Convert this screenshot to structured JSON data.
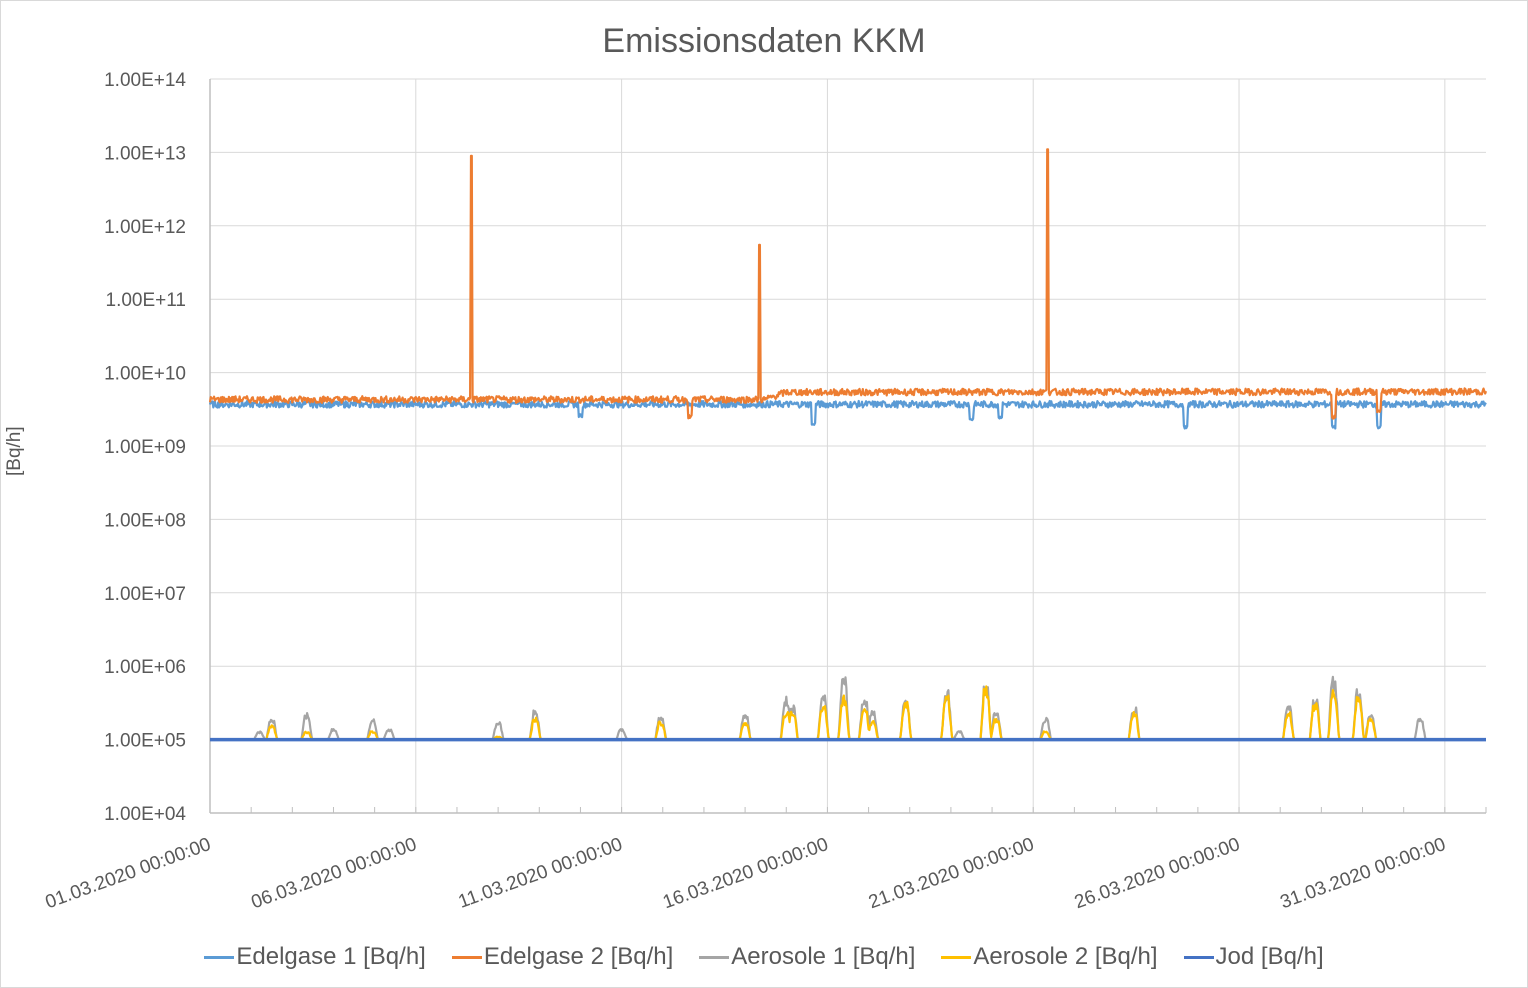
{
  "chart_data": {
    "type": "line",
    "title": "Emissionsdaten KKM",
    "xlabel": "",
    "ylabel": "[Bq/h]",
    "yscale": "log",
    "ylim": [
      10000,
      100000000000000
    ],
    "y_tick_labels": [
      "1.00E+04",
      "1.00E+05",
      "1.00E+06",
      "1.00E+07",
      "1.00E+08",
      "1.00E+09",
      "1.00E+10",
      "1.00E+11",
      "1.00E+12",
      "1.00E+13",
      "1.00E+14"
    ],
    "x_unit": "days since 01.03.2020 00:00:00",
    "xlim": [
      0,
      31
    ],
    "x_tick_labels": [
      "01.03.2020 00:00:00",
      "06.03.2020 00:00:00",
      "11.03.2020 00:00:00",
      "16.03.2020 00:00:00",
      "21.03.2020 00:00:00",
      "26.03.2020 00:00:00",
      "31.03.2020 00:00:00"
    ],
    "x_tick_values": [
      0,
      5,
      10,
      15,
      20,
      25,
      30
    ],
    "grid": true,
    "legend_position": "bottom",
    "series": [
      {
        "name": "Edelgase 1 [Bq/h]",
        "color": "#5b9bd5",
        "baseline": 3700000000,
        "events": [
          [
            14.65,
            2000000000
          ],
          [
            18.5,
            2300000000
          ],
          [
            19.2,
            2500000000
          ],
          [
            23.7,
            1800000000
          ],
          [
            27.3,
            1800000000
          ],
          [
            28.4,
            1800000000
          ],
          [
            9.0,
            2600000000
          ]
        ]
      },
      {
        "name": "Edelgase 2 [Bq/h]",
        "color": "#ed7d31",
        "levels": [
          [
            0,
            4300000000
          ],
          [
            13.5,
            4300000000
          ],
          [
            14.0,
            5400000000
          ],
          [
            31,
            5500000000
          ]
        ],
        "events": [
          [
            6.35,
            9000000000000
          ],
          [
            13.35,
            550000000000
          ],
          [
            20.35,
            11000000000000
          ],
          [
            11.65,
            2500000000
          ],
          [
            27.3,
            2500000000
          ],
          [
            28.4,
            3000000000
          ]
        ]
      },
      {
        "name": "Aerosole 1 [Bq/h]",
        "color": "#a5a5a5",
        "baseline": 100000,
        "events": [
          [
            1.2,
            130000
          ],
          [
            1.5,
            200000
          ],
          [
            2.35,
            230000
          ],
          [
            3.0,
            140000
          ],
          [
            3.95,
            190000
          ],
          [
            4.35,
            140000
          ],
          [
            7.0,
            180000
          ],
          [
            7.9,
            250000
          ],
          [
            10.0,
            140000
          ],
          [
            10.95,
            220000
          ],
          [
            13.0,
            240000
          ],
          [
            14.0,
            400000
          ],
          [
            14.15,
            300000
          ],
          [
            14.9,
            400000
          ],
          [
            15.4,
            750000
          ],
          [
            15.9,
            400000
          ],
          [
            16.1,
            250000
          ],
          [
            16.9,
            400000
          ],
          [
            17.9,
            500000
          ],
          [
            18.2,
            130000
          ],
          [
            18.85,
            550000
          ],
          [
            19.1,
            250000
          ],
          [
            20.3,
            200000
          ],
          [
            22.45,
            280000
          ],
          [
            26.2,
            320000
          ],
          [
            26.85,
            400000
          ],
          [
            27.3,
            750000
          ],
          [
            27.9,
            550000
          ],
          [
            28.2,
            250000
          ],
          [
            29.4,
            200000
          ]
        ]
      },
      {
        "name": "Aerosole 2 [Bq/h]",
        "color": "#ffc000",
        "baseline": 100000,
        "events": [
          [
            1.5,
            160000
          ],
          [
            2.35,
            130000
          ],
          [
            3.95,
            130000
          ],
          [
            7.0,
            110000
          ],
          [
            7.9,
            200000
          ],
          [
            10.95,
            180000
          ],
          [
            13.0,
            180000
          ],
          [
            14.0,
            250000
          ],
          [
            14.15,
            250000
          ],
          [
            14.9,
            300000
          ],
          [
            15.4,
            400000
          ],
          [
            15.9,
            300000
          ],
          [
            16.1,
            180000
          ],
          [
            16.9,
            350000
          ],
          [
            17.9,
            400000
          ],
          [
            18.85,
            550000
          ],
          [
            19.1,
            200000
          ],
          [
            20.3,
            130000
          ],
          [
            22.45,
            240000
          ],
          [
            26.2,
            240000
          ],
          [
            26.85,
            320000
          ],
          [
            27.3,
            500000
          ],
          [
            27.9,
            400000
          ],
          [
            28.2,
            200000
          ]
        ]
      },
      {
        "name": "Jod [Bq/h]",
        "color": "#4472c4",
        "baseline": 100000,
        "events": []
      }
    ]
  }
}
